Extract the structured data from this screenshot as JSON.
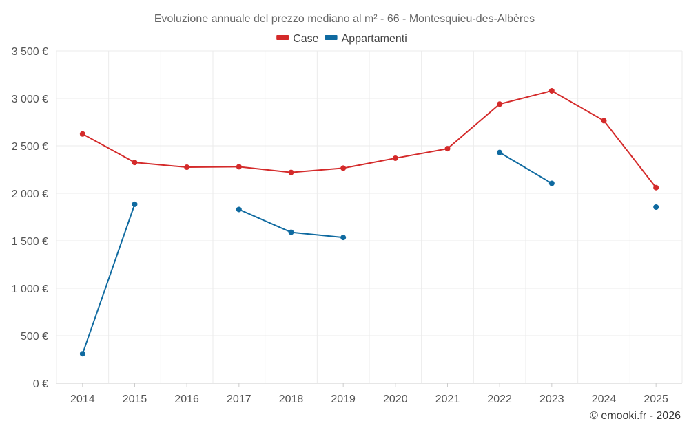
{
  "chart_data": {
    "type": "line",
    "title": "Evoluzione annuale del prezzo mediano al m² - 66 - Montesquieu-des-Albères",
    "xlabel": "",
    "ylabel": "",
    "categories": [
      "2014",
      "2015",
      "2016",
      "2017",
      "2018",
      "2019",
      "2020",
      "2021",
      "2022",
      "2023",
      "2024",
      "2025"
    ],
    "ylim": [
      0,
      3500
    ],
    "yticks": [
      0,
      500,
      1000,
      1500,
      2000,
      2500,
      3000,
      3500
    ],
    "ytick_labels": [
      "0 €",
      "500 €",
      "1 000 €",
      "1 500 €",
      "2 000 €",
      "2 500 €",
      "3 000 €",
      "3 500 €"
    ],
    "grid": true,
    "legend_position": "top-center",
    "series": [
      {
        "name": "Case",
        "color": "#d42a2a",
        "values": [
          2625,
          2325,
          2275,
          2280,
          2220,
          2265,
          2370,
          2470,
          2940,
          3080,
          2765,
          2060
        ]
      },
      {
        "name": "Appartamenti",
        "color": "#0f6aa0",
        "values": [
          310,
          1885,
          null,
          1830,
          1590,
          1535,
          null,
          null,
          2430,
          2105,
          null,
          1855
        ]
      }
    ],
    "credit": "© emooki.fr - 2026"
  }
}
